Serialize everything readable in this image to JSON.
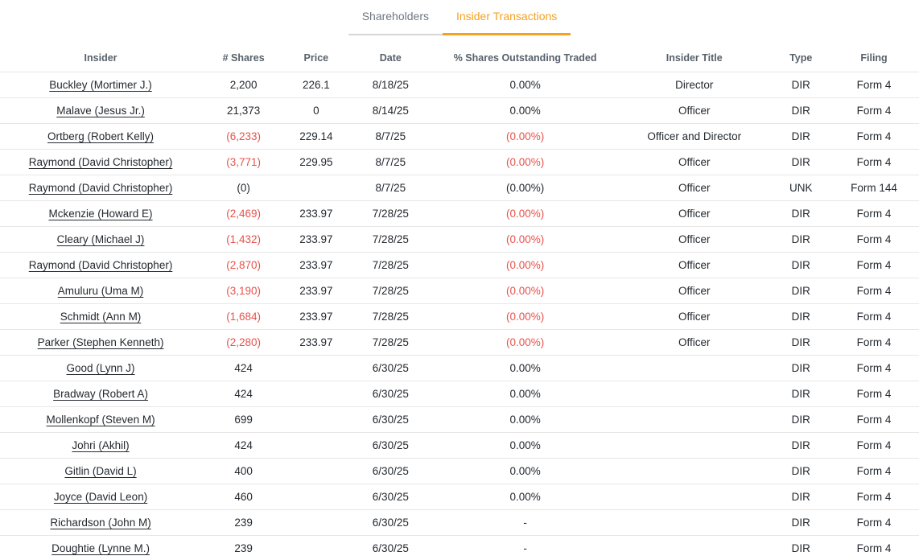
{
  "tabs": [
    {
      "label": "Shareholders",
      "active": false
    },
    {
      "label": "Insider Transactions",
      "active": true
    }
  ],
  "colors": {
    "accent": "#F5A11F",
    "negative": "#E8524C"
  },
  "table": {
    "columns": [
      "Insider",
      "# Shares",
      "Price",
      "Date",
      "% Shares Outstanding Traded",
      "Insider Title",
      "Type",
      "Filing"
    ],
    "rows": [
      {
        "insider": "Buckley (Mortimer J.)",
        "shares": "2,200",
        "shares_neg": false,
        "price": "226.1",
        "date": "8/18/25",
        "pct": "0.00%",
        "pct_neg": false,
        "title": "Director",
        "type": "DIR",
        "filing": "Form 4"
      },
      {
        "insider": "Malave (Jesus Jr.)",
        "shares": "21,373",
        "shares_neg": false,
        "price": "0",
        "date": "8/14/25",
        "pct": "0.00%",
        "pct_neg": false,
        "title": "Officer",
        "type": "DIR",
        "filing": "Form 4"
      },
      {
        "insider": "Ortberg (Robert Kelly)",
        "shares": "(6,233)",
        "shares_neg": true,
        "price": "229.14",
        "date": "8/7/25",
        "pct": "(0.00%)",
        "pct_neg": true,
        "title": "Officer and Director",
        "type": "DIR",
        "filing": "Form 4"
      },
      {
        "insider": "Raymond (David Christopher)",
        "shares": "(3,771)",
        "shares_neg": true,
        "price": "229.95",
        "date": "8/7/25",
        "pct": "(0.00%)",
        "pct_neg": true,
        "title": "Officer",
        "type": "DIR",
        "filing": "Form 4"
      },
      {
        "insider": "Raymond (David Christopher)",
        "shares": "(0)",
        "shares_neg": false,
        "price": "",
        "date": "8/7/25",
        "pct": "(0.00%)",
        "pct_neg": false,
        "title": "Officer",
        "type": "UNK",
        "filing": "Form 144"
      },
      {
        "insider": "Mckenzie (Howard E)",
        "shares": "(2,469)",
        "shares_neg": true,
        "price": "233.97",
        "date": "7/28/25",
        "pct": "(0.00%)",
        "pct_neg": true,
        "title": "Officer",
        "type": "DIR",
        "filing": "Form 4"
      },
      {
        "insider": "Cleary (Michael J)",
        "shares": "(1,432)",
        "shares_neg": true,
        "price": "233.97",
        "date": "7/28/25",
        "pct": "(0.00%)",
        "pct_neg": true,
        "title": "Officer",
        "type": "DIR",
        "filing": "Form 4"
      },
      {
        "insider": "Raymond (David Christopher)",
        "shares": "(2,870)",
        "shares_neg": true,
        "price": "233.97",
        "date": "7/28/25",
        "pct": "(0.00%)",
        "pct_neg": true,
        "title": "Officer",
        "type": "DIR",
        "filing": "Form 4"
      },
      {
        "insider": "Amuluru (Uma M)",
        "shares": "(3,190)",
        "shares_neg": true,
        "price": "233.97",
        "date": "7/28/25",
        "pct": "(0.00%)",
        "pct_neg": true,
        "title": "Officer",
        "type": "DIR",
        "filing": "Form 4"
      },
      {
        "insider": "Schmidt (Ann M)",
        "shares": "(1,684)",
        "shares_neg": true,
        "price": "233.97",
        "date": "7/28/25",
        "pct": "(0.00%)",
        "pct_neg": true,
        "title": "Officer",
        "type": "DIR",
        "filing": "Form 4"
      },
      {
        "insider": "Parker (Stephen Kenneth)",
        "shares": "(2,280)",
        "shares_neg": true,
        "price": "233.97",
        "date": "7/28/25",
        "pct": "(0.00%)",
        "pct_neg": true,
        "title": "Officer",
        "type": "DIR",
        "filing": "Form 4"
      },
      {
        "insider": "Good (Lynn J)",
        "shares": "424",
        "shares_neg": false,
        "price": "",
        "date": "6/30/25",
        "pct": "0.00%",
        "pct_neg": false,
        "title": "",
        "type": "DIR",
        "filing": "Form 4"
      },
      {
        "insider": "Bradway (Robert A)",
        "shares": "424",
        "shares_neg": false,
        "price": "",
        "date": "6/30/25",
        "pct": "0.00%",
        "pct_neg": false,
        "title": "",
        "type": "DIR",
        "filing": "Form 4"
      },
      {
        "insider": "Mollenkopf (Steven M)",
        "shares": "699",
        "shares_neg": false,
        "price": "",
        "date": "6/30/25",
        "pct": "0.00%",
        "pct_neg": false,
        "title": "",
        "type": "DIR",
        "filing": "Form 4"
      },
      {
        "insider": "Johri (Akhil)",
        "shares": "424",
        "shares_neg": false,
        "price": "",
        "date": "6/30/25",
        "pct": "0.00%",
        "pct_neg": false,
        "title": "",
        "type": "DIR",
        "filing": "Form 4"
      },
      {
        "insider": "Gitlin (David L)",
        "shares": "400",
        "shares_neg": false,
        "price": "",
        "date": "6/30/25",
        "pct": "0.00%",
        "pct_neg": false,
        "title": "",
        "type": "DIR",
        "filing": "Form 4"
      },
      {
        "insider": "Joyce (David Leon)",
        "shares": "460",
        "shares_neg": false,
        "price": "",
        "date": "6/30/25",
        "pct": "0.00%",
        "pct_neg": false,
        "title": "",
        "type": "DIR",
        "filing": "Form 4"
      },
      {
        "insider": "Richardson (John M)",
        "shares": "239",
        "shares_neg": false,
        "price": "",
        "date": "6/30/25",
        "pct": "-",
        "pct_neg": false,
        "title": "",
        "type": "DIR",
        "filing": "Form 4"
      },
      {
        "insider": "Doughtie (Lynne M.)",
        "shares": "239",
        "shares_neg": false,
        "price": "",
        "date": "6/30/25",
        "pct": "-",
        "pct_neg": false,
        "title": "",
        "type": "DIR",
        "filing": "Form 4"
      }
    ]
  }
}
